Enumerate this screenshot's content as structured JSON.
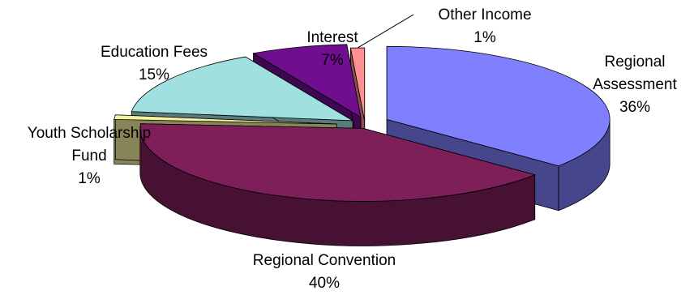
{
  "chart_data": {
    "type": "pie",
    "title": "",
    "exploded": true,
    "three_d": true,
    "legend": "none",
    "slices": [
      {
        "name": "Regional Assessment",
        "value": 36,
        "label_lines": [
          "Regional",
          "Assessment",
          "36%"
        ],
        "color": "#8080ff"
      },
      {
        "name": "Regional Convention",
        "value": 40,
        "label_lines": [
          "Regional Convention",
          "40%"
        ],
        "color": "#7f1f5a"
      },
      {
        "name": "Youth Scholarship Fund",
        "value": 1,
        "label_lines": [
          "Youth Scholarship",
          "Fund",
          "1%"
        ],
        "color": "#f5f0a0"
      },
      {
        "name": "Education Fees",
        "value": 15,
        "label_lines": [
          "Education Fees",
          "15%"
        ],
        "color": "#a0e0e0"
      },
      {
        "name": "Interest",
        "value": 7,
        "label_lines": [
          "Interest",
          "7%"
        ],
        "color": "#6f0f8f"
      },
      {
        "name": "Other Income",
        "value": 1,
        "label_lines": [
          "Other Income",
          "1%"
        ],
        "color": "#ff9090"
      }
    ]
  }
}
